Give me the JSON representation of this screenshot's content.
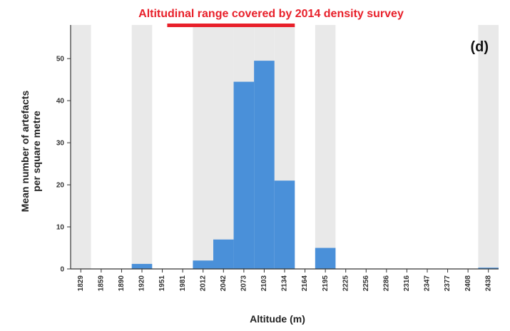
{
  "chart_data": {
    "type": "bar",
    "title": "Altitudinal range covered by 2014 density survey",
    "panel_label": "(d)",
    "xlabel": "Altitude (m)",
    "ylabel": [
      "Mean number of artefacts",
      "per square metre"
    ],
    "ylim": [
      0,
      58
    ],
    "yticks": [
      0,
      10,
      20,
      30,
      40,
      50
    ],
    "categories": [
      "1829",
      "1859",
      "1890",
      "1920",
      "1951",
      "1981",
      "2012",
      "2042",
      "2073",
      "2103",
      "2134",
      "2164",
      "2195",
      "2225",
      "2256",
      "2286",
      "2316",
      "2347",
      "2377",
      "2408",
      "2438"
    ],
    "values": [
      0,
      0,
      0,
      1.2,
      0,
      0,
      2,
      7,
      44.5,
      49.5,
      21,
      0,
      5,
      0,
      0,
      0,
      0,
      0,
      0,
      0,
      0.3
    ],
    "grid": false,
    "bar_color": "#4a90d9",
    "shaded_band_color": "#e9e9e9",
    "highlight_color": "#e8202a",
    "shaded_categories": [
      "1829",
      "1920",
      "2012",
      "2042",
      "2073",
      "2103",
      "2134",
      "2195",
      "2438"
    ],
    "survey_range": [
      "2012",
      "2134"
    ]
  }
}
